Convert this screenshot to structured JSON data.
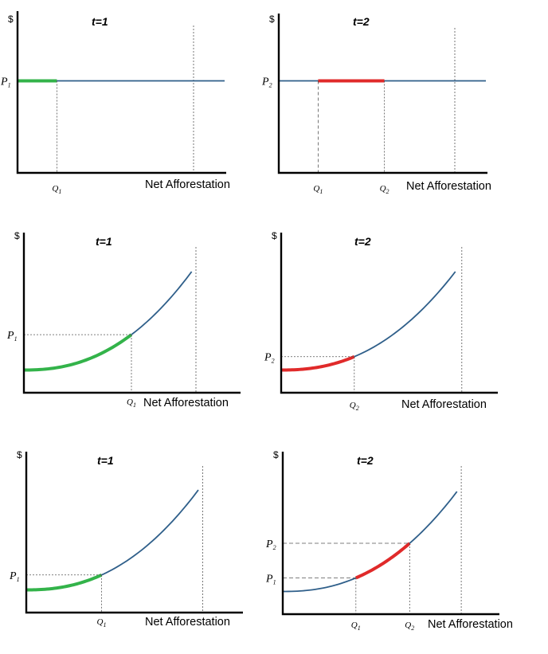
{
  "figure": {
    "axis_symbol": "$",
    "x_axis_label": "Net Afforestation"
  },
  "colors": {
    "curve": "#2f5f8a",
    "t1_segment": "#33b34a",
    "t2_segment": "#e02a2a",
    "axis": "#000000",
    "guide": "#555555"
  },
  "chart_data": [
    {
      "id": "flat-t1",
      "type": "line",
      "title": "t=1",
      "curve_shape": "flat",
      "ylabel": "$",
      "xlabel": "Net Afforestation",
      "x_range": [
        0,
        1
      ],
      "y_range": [
        0,
        1
      ],
      "x_max_marker": 0.85,
      "points": [
        {
          "label": "P1",
          "base": "P",
          "sub": "1",
          "price": 0.55,
          "quantity": 0.19,
          "qlabel": "Q1",
          "qbase": "Q",
          "qsub": "1"
        }
      ],
      "highlight": {
        "from": 0,
        "to": 0.19,
        "color": "green"
      }
    },
    {
      "id": "flat-t2",
      "type": "line",
      "title": "t=2",
      "curve_shape": "flat",
      "ylabel": "$",
      "xlabel": "Net Afforestation",
      "x_range": [
        0,
        1
      ],
      "y_range": [
        0,
        1
      ],
      "x_max_marker": 0.85,
      "points": [
        {
          "label": "P2",
          "base": "P",
          "sub": "2",
          "price": 0.55,
          "quantity": 0.19,
          "qlabel": "Q1",
          "qbase": "Q",
          "qsub": "1"
        },
        {
          "label": "",
          "base": "",
          "sub": "",
          "price": 0.55,
          "quantity": 0.51,
          "qlabel": "Q2",
          "qbase": "Q",
          "qsub": "2"
        }
      ],
      "highlight": {
        "from": 0.19,
        "to": 0.51,
        "color": "red"
      }
    },
    {
      "id": "convex-t1",
      "type": "line",
      "title": "t=1",
      "curve_shape": "convex",
      "ylabel": "$",
      "xlabel": "Net Afforestation",
      "x_range": [
        0,
        1
      ],
      "y_range": [
        0,
        1
      ],
      "x_max_marker": 0.8,
      "curve": {
        "intercept": 0.15,
        "end_x": 0.78,
        "end_y": 0.8
      },
      "points": [
        {
          "label": "P1",
          "base": "P",
          "sub": "1",
          "price": 0.328,
          "quantity": 0.5,
          "qlabel": "Q1",
          "qbase": "Q",
          "qsub": "1"
        }
      ],
      "highlight": {
        "from": 0,
        "to": 0.5,
        "color": "green"
      }
    },
    {
      "id": "convex-t2",
      "type": "line",
      "title": "t=2",
      "curve_shape": "convex",
      "ylabel": "$",
      "xlabel": "Net Afforestation",
      "x_range": [
        0,
        1
      ],
      "y_range": [
        0,
        1
      ],
      "x_max_marker": 0.84,
      "curve": {
        "intercept": 0.15,
        "end_x": 0.81,
        "end_y": 0.8
      },
      "points": [
        {
          "label": "P2",
          "base": "P",
          "sub": "2",
          "price": 0.215,
          "quantity": 0.34,
          "qlabel": "Q2",
          "qbase": "Q",
          "qsub": "2"
        }
      ],
      "highlight": {
        "from": 0,
        "to": 0.34,
        "color": "red"
      }
    },
    {
      "id": "convex2-t1",
      "type": "line",
      "title": "t=1",
      "curve_shape": "convex",
      "ylabel": "$",
      "xlabel": "Net Afforestation",
      "x_range": [
        0,
        1
      ],
      "y_range": [
        0,
        1
      ],
      "x_max_marker": 0.82,
      "curve": {
        "intercept": 0.15,
        "end_x": 0.8,
        "end_y": 0.81
      },
      "points": [
        {
          "label": "P1",
          "base": "P",
          "sub": "1",
          "price": 0.245,
          "quantity": 0.35,
          "qlabel": "Q1",
          "qbase": "Q",
          "qsub": "1"
        }
      ],
      "highlight": {
        "from": 0,
        "to": 0.35,
        "color": "green"
      }
    },
    {
      "id": "convex2-t2",
      "type": "line",
      "title": "t=2",
      "curve_shape": "convex",
      "ylabel": "$",
      "xlabel": "Net Afforestation",
      "x_range": [
        0,
        1
      ],
      "y_range": [
        0,
        1
      ],
      "x_max_marker": 0.83,
      "curve": {
        "intercept": 0.15,
        "end_x": 0.81,
        "end_y": 0.81
      },
      "points": [
        {
          "label": "P1",
          "base": "P",
          "sub": "1",
          "price": 0.246,
          "quantity": 0.34,
          "qlabel": "Q1",
          "qbase": "Q",
          "qsub": "1"
        },
        {
          "label": "P2",
          "base": "P",
          "sub": "2",
          "price": 0.45,
          "quantity": 0.59,
          "qlabel": "Q2",
          "qbase": "Q",
          "qsub": "2"
        }
      ],
      "highlight": {
        "from": 0.34,
        "to": 0.59,
        "color": "red"
      }
    }
  ]
}
